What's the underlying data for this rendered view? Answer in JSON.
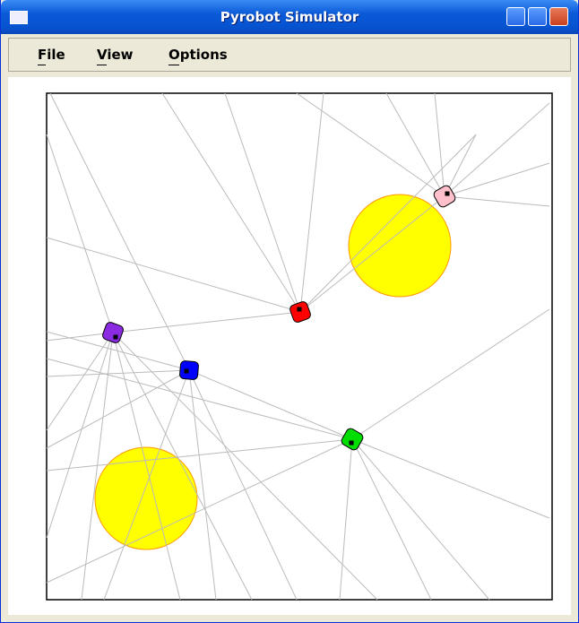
{
  "window": {
    "title": "Pyrobot Simulator"
  },
  "menu": [
    "File",
    "View",
    "Options"
  ]
}
